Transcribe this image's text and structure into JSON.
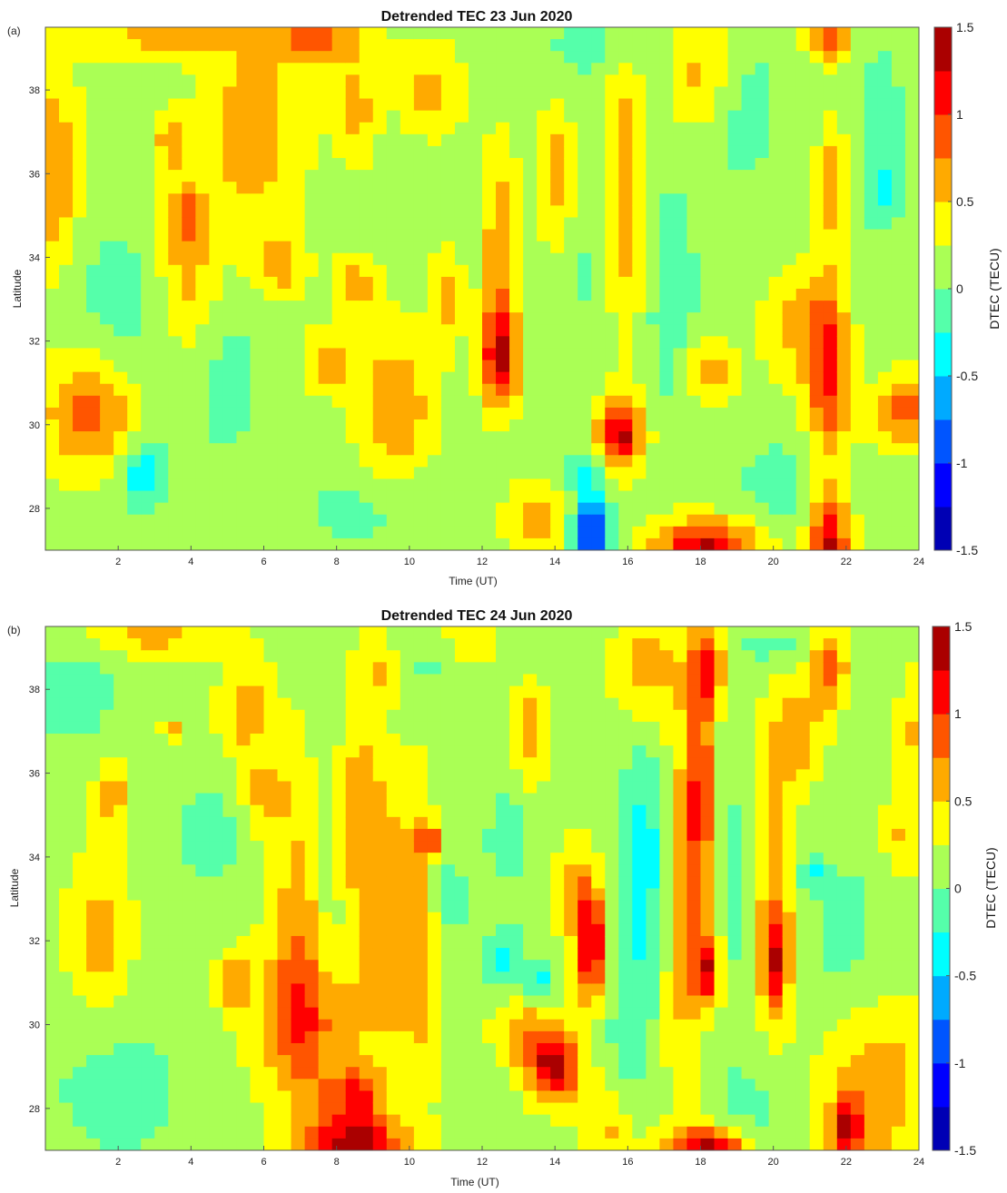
{
  "chart_data": [
    {
      "type": "heatmap",
      "panel_label": "(a)",
      "title": "Detrended TEC 23 Jun 2020",
      "xlabel": "Time (UT)",
      "ylabel": "Latitude",
      "xlim": [
        0,
        24
      ],
      "ylim": [
        27,
        39.5
      ],
      "xticks": [
        "2",
        "4",
        "6",
        "8",
        "10",
        "12",
        "14",
        "16",
        "18",
        "20",
        "22",
        "24"
      ],
      "yticks": [
        "28",
        "30",
        "32",
        "34",
        "36",
        "38"
      ],
      "colorbar": {
        "label": "DTEC (TECU)",
        "range": [
          -1.5,
          1.5
        ],
        "ticks": [
          "-1.5",
          "-1",
          "-0.5",
          "0",
          "0.5",
          "1",
          "1.5"
        ],
        "colormap": "jet"
      },
      "base_value": 0.15,
      "features": [
        {
          "t": 0.2,
          "lat": 36.0,
          "val": 0.75,
          "st": 0.5,
          "sl": 1.8
        },
        {
          "t": 1.2,
          "lat": 30.3,
          "val": 0.85,
          "st": 0.9,
          "sl": 1.0
        },
        {
          "t": 2.7,
          "lat": 28.8,
          "val": -0.45,
          "st": 0.45,
          "sl": 0.55
        },
        {
          "t": 3.2,
          "lat": 39.3,
          "val": 0.6,
          "st": 1.5,
          "sl": 0.4
        },
        {
          "t": 3.5,
          "lat": 36.8,
          "val": 0.7,
          "st": 0.35,
          "sl": 0.5
        },
        {
          "t": 3.9,
          "lat": 33.5,
          "val": 0.65,
          "st": 0.6,
          "sl": 1.3
        },
        {
          "t": 3.9,
          "lat": 35.0,
          "val": 0.7,
          "st": 0.4,
          "sl": 0.5
        },
        {
          "t": 2.0,
          "lat": 33.0,
          "val": -0.1,
          "st": 1.2,
          "sl": 1.5
        },
        {
          "t": 5.7,
          "lat": 37.0,
          "val": 0.7,
          "st": 0.9,
          "sl": 1.6
        },
        {
          "t": 6.4,
          "lat": 33.8,
          "val": 0.65,
          "st": 0.5,
          "sl": 0.5
        },
        {
          "t": 5.0,
          "lat": 31.0,
          "val": -0.1,
          "st": 0.8,
          "sl": 1.5
        },
        {
          "t": 7.5,
          "lat": 39.3,
          "val": 0.8,
          "st": 1.0,
          "sl": 0.5
        },
        {
          "t": 7.8,
          "lat": 31.5,
          "val": 0.65,
          "st": 0.5,
          "sl": 0.5
        },
        {
          "t": 8.5,
          "lat": 33.3,
          "val": 0.65,
          "st": 0.4,
          "sl": 0.5
        },
        {
          "t": 8.5,
          "lat": 37.5,
          "val": 0.65,
          "st": 0.4,
          "sl": 0.8
        },
        {
          "t": 9.6,
          "lat": 30.3,
          "val": 0.75,
          "st": 0.7,
          "sl": 1.3
        },
        {
          "t": 10.6,
          "lat": 38.0,
          "val": 0.6,
          "st": 0.6,
          "sl": 0.7
        },
        {
          "t": 9.0,
          "lat": 28.0,
          "val": -0.1,
          "st": 1.5,
          "sl": 0.8
        },
        {
          "t": 11.0,
          "lat": 33.0,
          "val": 0.6,
          "st": 0.3,
          "sl": 0.8
        },
        {
          "t": 12.5,
          "lat": 31.6,
          "val": 1.3,
          "st": 0.35,
          "sl": 0.8
        },
        {
          "t": 12.5,
          "lat": 34.2,
          "val": 0.7,
          "st": 0.35,
          "sl": 1.6
        },
        {
          "t": 13.5,
          "lat": 27.7,
          "val": 0.65,
          "st": 0.6,
          "sl": 0.6
        },
        {
          "t": 14.0,
          "lat": 36.0,
          "val": 0.65,
          "st": 0.35,
          "sl": 1.0
        },
        {
          "t": 15.0,
          "lat": 27.3,
          "val": -1.2,
          "st": 0.35,
          "sl": 0.7
        },
        {
          "t": 14.8,
          "lat": 28.8,
          "val": -0.35,
          "st": 0.3,
          "sl": 0.35
        },
        {
          "t": 15.8,
          "lat": 29.8,
          "val": 1.3,
          "st": 0.45,
          "sl": 0.6
        },
        {
          "t": 15.9,
          "lat": 35.8,
          "val": 0.7,
          "st": 0.45,
          "sl": 2.5
        },
        {
          "t": 15.1,
          "lat": 34.0,
          "val": -0.1,
          "st": 0.35,
          "sl": 2.5
        },
        {
          "t": 15.5,
          "lat": 39.0,
          "val": -0.1,
          "st": 1.5,
          "sl": 0.5
        },
        {
          "t": 17.2,
          "lat": 33.0,
          "val": -0.2,
          "st": 0.5,
          "sl": 2.0
        },
        {
          "t": 18.0,
          "lat": 38.5,
          "val": 0.7,
          "st": 0.6,
          "sl": 1.1
        },
        {
          "t": 18.2,
          "lat": 27.0,
          "val": 1.35,
          "st": 1.0,
          "sl": 0.5
        },
        {
          "t": 18.2,
          "lat": 31.3,
          "val": 0.65,
          "st": 0.5,
          "sl": 0.5
        },
        {
          "t": 19.0,
          "lat": 37.5,
          "val": -0.1,
          "st": 1.0,
          "sl": 1.5
        },
        {
          "t": 20.2,
          "lat": 28.5,
          "val": -0.1,
          "st": 1.0,
          "sl": 1.0
        },
        {
          "t": 21.5,
          "lat": 31.3,
          "val": 1.05,
          "st": 0.4,
          "sl": 1.6
        },
        {
          "t": 21.5,
          "lat": 27.0,
          "val": 1.35,
          "st": 0.4,
          "sl": 0.9
        },
        {
          "t": 21.5,
          "lat": 39.2,
          "val": 1.0,
          "st": 0.4,
          "sl": 0.35
        },
        {
          "t": 21.6,
          "lat": 35.8,
          "val": 0.7,
          "st": 0.3,
          "sl": 0.9
        },
        {
          "t": 23.0,
          "lat": 35.5,
          "val": -0.3,
          "st": 0.4,
          "sl": 0.6
        },
        {
          "t": 23.0,
          "lat": 37.5,
          "val": -0.15,
          "st": 0.4,
          "sl": 1.2
        },
        {
          "t": 23.6,
          "lat": 30.3,
          "val": 0.85,
          "st": 0.6,
          "sl": 0.6
        },
        {
          "t": 20.6,
          "lat": 32.3,
          "val": 0.55,
          "st": 0.6,
          "sl": 1.0
        }
      ]
    },
    {
      "type": "heatmap",
      "panel_label": "(b)",
      "title": "Detrended TEC 24 Jun 2020",
      "xlabel": "Time (UT)",
      "ylabel": "Latitude",
      "xlim": [
        0,
        24
      ],
      "ylim": [
        27,
        39.5
      ],
      "xticks": [
        "2",
        "4",
        "6",
        "8",
        "10",
        "12",
        "14",
        "16",
        "18",
        "20",
        "22",
        "24"
      ],
      "yticks": [
        "28",
        "30",
        "32",
        "34",
        "36",
        "38"
      ],
      "colorbar": {
        "label": "DTEC (TECU)",
        "range": [
          -1.5,
          1.5
        ],
        "ticks": [
          "-1.5",
          "-1",
          "-0.5",
          "0",
          "0.5",
          "1",
          "1.5"
        ],
        "colormap": "jet"
      },
      "base_value": 0.15,
      "features": [
        {
          "t": 0.8,
          "lat": 38.0,
          "val": -0.1,
          "st": 1.0,
          "sl": 1.2
        },
        {
          "t": 1.5,
          "lat": 32.0,
          "val": 0.65,
          "st": 0.6,
          "sl": 1.3
        },
        {
          "t": 1.8,
          "lat": 35.5,
          "val": 0.65,
          "st": 0.35,
          "sl": 0.6
        },
        {
          "t": 2.0,
          "lat": 28.5,
          "val": -0.1,
          "st": 1.5,
          "sl": 1.5
        },
        {
          "t": 2.8,
          "lat": 39.3,
          "val": 0.6,
          "st": 1.5,
          "sl": 0.4
        },
        {
          "t": 3.5,
          "lat": 37.0,
          "val": 0.7,
          "st": 0.2,
          "sl": 0.2
        },
        {
          "t": 4.5,
          "lat": 34.5,
          "val": -0.1,
          "st": 0.8,
          "sl": 1.0
        },
        {
          "t": 5.2,
          "lat": 31.0,
          "val": 0.65,
          "st": 0.3,
          "sl": 0.5
        },
        {
          "t": 5.5,
          "lat": 37.5,
          "val": 0.65,
          "st": 0.5,
          "sl": 0.8
        },
        {
          "t": 6.0,
          "lat": 35.5,
          "val": 0.65,
          "st": 0.4,
          "sl": 0.6
        },
        {
          "t": 7.0,
          "lat": 32.0,
          "val": 0.65,
          "st": 0.6,
          "sl": 3.0
        },
        {
          "t": 7.3,
          "lat": 30.0,
          "val": 0.7,
          "st": 1.2,
          "sl": 1.2
        },
        {
          "t": 7.8,
          "lat": 33.5,
          "val": -0.1,
          "st": 0.35,
          "sl": 3.0
        },
        {
          "t": 8.5,
          "lat": 27.2,
          "val": 1.35,
          "st": 0.9,
          "sl": 0.45
        },
        {
          "t": 8.5,
          "lat": 28.3,
          "val": 0.95,
          "st": 0.6,
          "sl": 0.45
        },
        {
          "t": 8.6,
          "lat": 35.0,
          "val": 0.65,
          "st": 0.5,
          "sl": 1.8
        },
        {
          "t": 9.4,
          "lat": 32.5,
          "val": 0.65,
          "st": 0.5,
          "sl": 2.0
        },
        {
          "t": 9.1,
          "lat": 38.5,
          "val": 0.6,
          "st": 0.4,
          "sl": 0.6
        },
        {
          "t": 10.6,
          "lat": 34.4,
          "val": 0.95,
          "st": 0.25,
          "sl": 0.25
        },
        {
          "t": 10.3,
          "lat": 32.0,
          "val": 0.6,
          "st": 0.4,
          "sl": 2.5
        },
        {
          "t": 11.0,
          "lat": 38.5,
          "val": -0.05,
          "st": 1.5,
          "sl": 0.5
        },
        {
          "t": 11.7,
          "lat": 39.0,
          "val": 0.6,
          "st": 0.5,
          "sl": 0.5
        },
        {
          "t": 11.0,
          "lat": 33.0,
          "val": -0.1,
          "st": 0.5,
          "sl": 1.2
        },
        {
          "t": 12.6,
          "lat": 31.6,
          "val": -0.35,
          "st": 0.35,
          "sl": 0.5
        },
        {
          "t": 13.6,
          "lat": 31.0,
          "val": -0.35,
          "st": 0.3,
          "sl": 0.4
        },
        {
          "t": 12.7,
          "lat": 34.5,
          "val": -0.1,
          "st": 0.5,
          "sl": 1.0
        },
        {
          "t": 13.3,
          "lat": 37.0,
          "val": 0.65,
          "st": 0.35,
          "sl": 0.9
        },
        {
          "t": 14.0,
          "lat": 29.0,
          "val": 1.3,
          "st": 0.5,
          "sl": 0.6
        },
        {
          "t": 13.2,
          "lat": 29.8,
          "val": 0.65,
          "st": 0.6,
          "sl": 0.6
        },
        {
          "t": 15.0,
          "lat": 31.8,
          "val": 1.3,
          "st": 0.3,
          "sl": 0.9
        },
        {
          "t": 14.6,
          "lat": 33.2,
          "val": 0.65,
          "st": 0.4,
          "sl": 0.8
        },
        {
          "t": 15.5,
          "lat": 27.5,
          "val": 0.6,
          "st": 0.5,
          "sl": 0.8
        },
        {
          "t": 16.5,
          "lat": 34.0,
          "val": -0.35,
          "st": 0.5,
          "sl": 2.2
        },
        {
          "t": 16.0,
          "lat": 30.0,
          "val": -0.1,
          "st": 0.5,
          "sl": 2.0
        },
        {
          "t": 16.5,
          "lat": 38.5,
          "val": 0.65,
          "st": 0.6,
          "sl": 1.0
        },
        {
          "t": 17.5,
          "lat": 33.0,
          "val": 0.65,
          "st": 0.4,
          "sl": 3.5
        },
        {
          "t": 18.2,
          "lat": 31.3,
          "val": 1.15,
          "st": 0.3,
          "sl": 0.6
        },
        {
          "t": 18.0,
          "lat": 35.5,
          "val": 0.95,
          "st": 0.25,
          "sl": 2.0
        },
        {
          "t": 18.2,
          "lat": 38.5,
          "val": 0.95,
          "st": 0.35,
          "sl": 0.7
        },
        {
          "t": 18.2,
          "lat": 27.0,
          "val": 1.35,
          "st": 0.8,
          "sl": 0.4
        },
        {
          "t": 18.8,
          "lat": 33.0,
          "val": -0.1,
          "st": 0.3,
          "sl": 2.5
        },
        {
          "t": 19.5,
          "lat": 28.0,
          "val": -0.1,
          "st": 0.8,
          "sl": 0.8
        },
        {
          "t": 20.0,
          "lat": 31.5,
          "val": 1.0,
          "st": 0.25,
          "sl": 0.8
        },
        {
          "t": 20.1,
          "lat": 33.5,
          "val": 0.65,
          "st": 0.4,
          "sl": 2.5
        },
        {
          "t": 20.7,
          "lat": 37.0,
          "val": 0.65,
          "st": 0.5,
          "sl": 0.8
        },
        {
          "t": 20.2,
          "lat": 39.0,
          "val": -0.1,
          "st": 1.0,
          "sl": 0.4
        },
        {
          "t": 21.5,
          "lat": 38.5,
          "val": 1.0,
          "st": 0.35,
          "sl": 0.6
        },
        {
          "t": 22.0,
          "lat": 32.0,
          "val": -0.1,
          "st": 0.8,
          "sl": 1.6
        },
        {
          "t": 21.0,
          "lat": 33.6,
          "val": -0.3,
          "st": 0.3,
          "sl": 0.3
        },
        {
          "t": 22.8,
          "lat": 28.5,
          "val": 0.7,
          "st": 1.0,
          "sl": 1.5
        },
        {
          "t": 22.0,
          "lat": 27.5,
          "val": 1.05,
          "st": 0.3,
          "sl": 0.5
        },
        {
          "t": 23.5,
          "lat": 34.5,
          "val": 0.55,
          "st": 0.4,
          "sl": 0.6
        },
        {
          "t": 24.0,
          "lat": 37.0,
          "val": 0.55,
          "st": 0.4,
          "sl": 1.0
        }
      ]
    }
  ]
}
